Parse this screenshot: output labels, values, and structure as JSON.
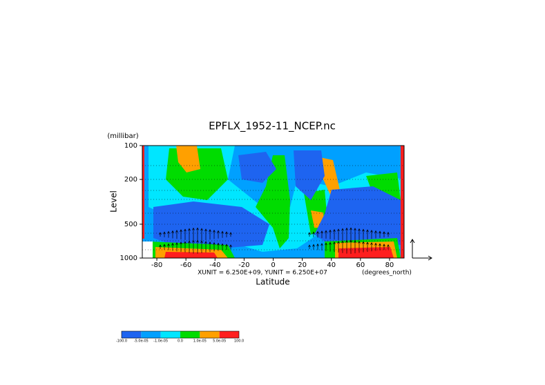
{
  "chart_data": {
    "type": "contour",
    "title": "EPFLX_1952-11_NCEP.nc",
    "y_unit_label": "(millibar)",
    "ylabel": "Level",
    "xlabel": "Latitude",
    "x_unit_label": "(degrees_north)",
    "annotation": "XUNIT = 6.250E+09, YUNIT = 6.250E+07",
    "xlim": [
      -90,
      90
    ],
    "xticks": [
      -80,
      -60,
      -40,
      -20,
      0,
      20,
      40,
      60,
      80
    ],
    "ylim": [
      1000,
      100
    ],
    "log_y": true,
    "yticks": [
      100,
      200,
      500,
      1000
    ],
    "colorbar": {
      "levels": [
        {
          "value": -100,
          "label": "-100.0"
        },
        {
          "value": -5e-05,
          "label": "-5.0e-05"
        },
        {
          "value": -1e-05,
          "label": "-1.0e-05"
        },
        {
          "value": 0,
          "label": "0.0"
        },
        {
          "value": 1e-05,
          "label": "1.0e-05"
        },
        {
          "value": 5e-05,
          "label": "5.0e-05"
        },
        {
          "value": 100,
          "label": "100.0"
        }
      ],
      "colors": [
        "#1e64f0",
        "#00a0ff",
        "#00e6ff",
        "#00dc00",
        "#ffa000",
        "#ff1e1e"
      ]
    }
  }
}
